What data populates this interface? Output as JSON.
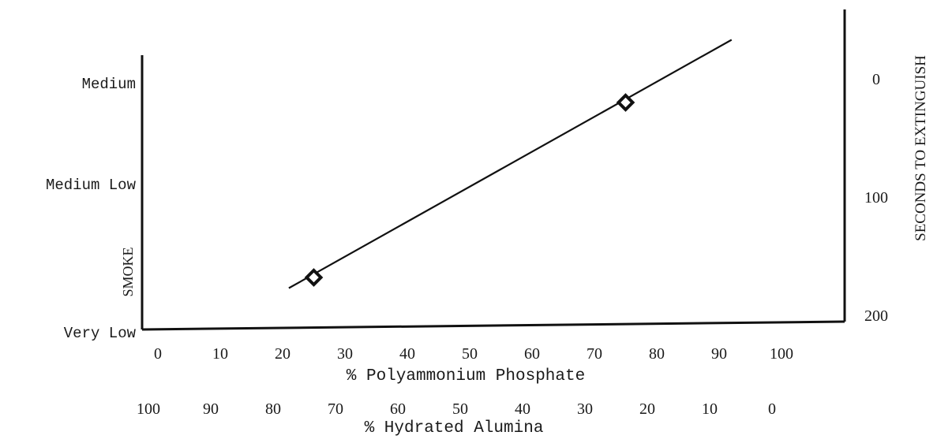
{
  "chart_data": {
    "type": "line",
    "x_axis_primary": {
      "label": "% Polyammonium Phosphate",
      "ticks": [
        0,
        10,
        20,
        30,
        40,
        50,
        60,
        70,
        80,
        90,
        100
      ],
      "range": [
        0,
        100
      ]
    },
    "x_axis_secondary": {
      "label": "% Hydrated Alumina",
      "ticks": [
        100,
        90,
        80,
        70,
        60,
        50,
        40,
        30,
        20,
        10,
        0
      ]
    },
    "y_axis_left": {
      "label": "SMOKE",
      "categories": [
        "Very Low",
        "Medium Low",
        "Medium"
      ]
    },
    "y_axis_right": {
      "label": "SECONDS TO EXTINGUISH",
      "ticks": [
        0,
        100,
        200
      ],
      "range": [
        200,
        -30
      ],
      "inverted": true
    },
    "series": [
      {
        "points": [
          {
            "x": 25,
            "y": 168
          },
          {
            "x": 75,
            "y": 20
          }
        ],
        "marker": "diamond"
      }
    ],
    "fit_line": {
      "x": [
        21,
        92
      ],
      "y": [
        177,
        -33
      ]
    },
    "grid": false,
    "colors": {
      "ink": "#111111"
    }
  }
}
